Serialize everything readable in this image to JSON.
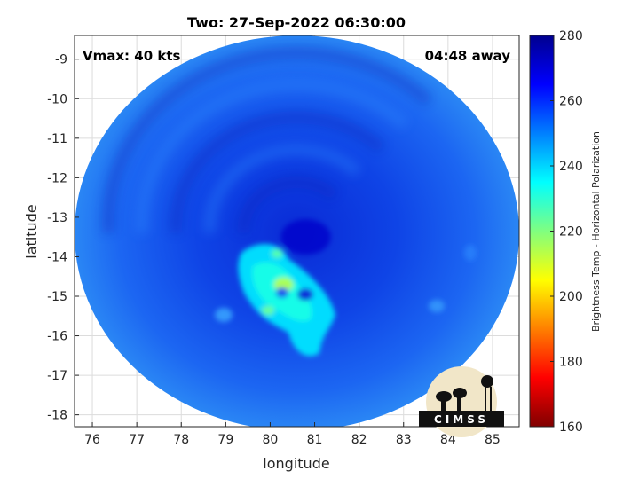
{
  "chart_data": {
    "type": "heatmap",
    "title": "Two: 27-Sep-2022 06:30:00",
    "xlabel": "longitude",
    "ylabel": "latitude",
    "xlim": [
      75.6,
      85.6
    ],
    "ylim": [
      -18.3,
      -8.4
    ],
    "x_ticks": [
      76,
      77,
      78,
      79,
      80,
      81,
      82,
      83,
      84,
      85
    ],
    "y_ticks": [
      -9,
      -10,
      -11,
      -12,
      -13,
      -14,
      -15,
      -16,
      -17,
      -18
    ],
    "grid": true,
    "annotations": {
      "vmax": "Vmax: 40 kts",
      "away": "04:48 away"
    },
    "colorbar": {
      "label": "Brightness Temp - Horizontal Polarization",
      "range": [
        160,
        280
      ],
      "ticks": [
        280,
        260,
        240,
        220,
        200,
        180,
        160
      ],
      "colormap": "jet"
    },
    "swath": {
      "center_lon": 80.6,
      "center_lat": -13.4,
      "radius_deg": 5.0
    },
    "features": [
      {
        "name": "cold-core",
        "lon": 80.3,
        "lat": -14.7,
        "value": 215
      },
      {
        "name": "rainband-1",
        "lon": 80.9,
        "lat": -15.4,
        "value": 232
      },
      {
        "name": "rainband-2",
        "lon": 79.5,
        "lat": -14.4,
        "value": 238
      },
      {
        "name": "eye",
        "lon": 80.8,
        "lat": -13.5,
        "value": 272
      }
    ]
  },
  "logo": {
    "text": "CIMSS"
  },
  "colors": {
    "swath_base": "#1a5cf0",
    "grid": "#dcdcdc",
    "frame": "#262626"
  }
}
